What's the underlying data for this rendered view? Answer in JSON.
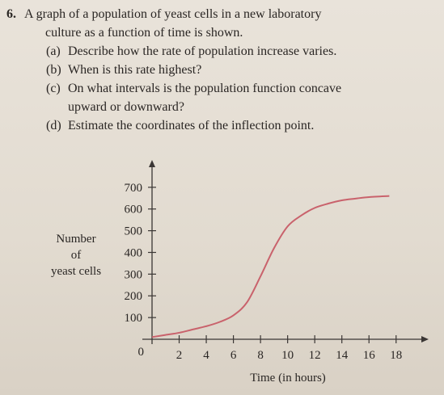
{
  "problem": {
    "number": "6.",
    "lines": [
      "A graph of a population of yeast cells in a new laboratory",
      "culture as a function of time is shown."
    ],
    "parts": [
      {
        "label": "(a)",
        "lines": [
          "Describe how the rate of population increase varies."
        ]
      },
      {
        "label": "(b)",
        "lines": [
          "When is this rate highest?"
        ]
      },
      {
        "label": "(c)",
        "lines": [
          "On what intervals is the population function concave",
          "upward or downward?"
        ]
      },
      {
        "label": "(d)",
        "lines": [
          "Estimate the coordinates of the inflection point."
        ]
      }
    ]
  },
  "chart_data": {
    "type": "line",
    "xlabel": "Time (in hours)",
    "ylabel": [
      "Number",
      "of",
      "yeast cells"
    ],
    "x": [
      0,
      1,
      2,
      3,
      4,
      5,
      6,
      7,
      8,
      9,
      10,
      11,
      12,
      13,
      14,
      15,
      16,
      17.5
    ],
    "values": [
      10,
      20,
      30,
      45,
      60,
      80,
      110,
      170,
      290,
      420,
      520,
      570,
      605,
      625,
      640,
      648,
      655,
      660
    ],
    "color": "#c9626c",
    "xlim": [
      0,
      20.4
    ],
    "ylim": [
      0,
      826
    ],
    "xticks": [
      2,
      4,
      6,
      8,
      10,
      12,
      14,
      16,
      18
    ],
    "yticks": [
      0,
      100,
      200,
      300,
      400,
      500,
      600,
      700
    ]
  }
}
